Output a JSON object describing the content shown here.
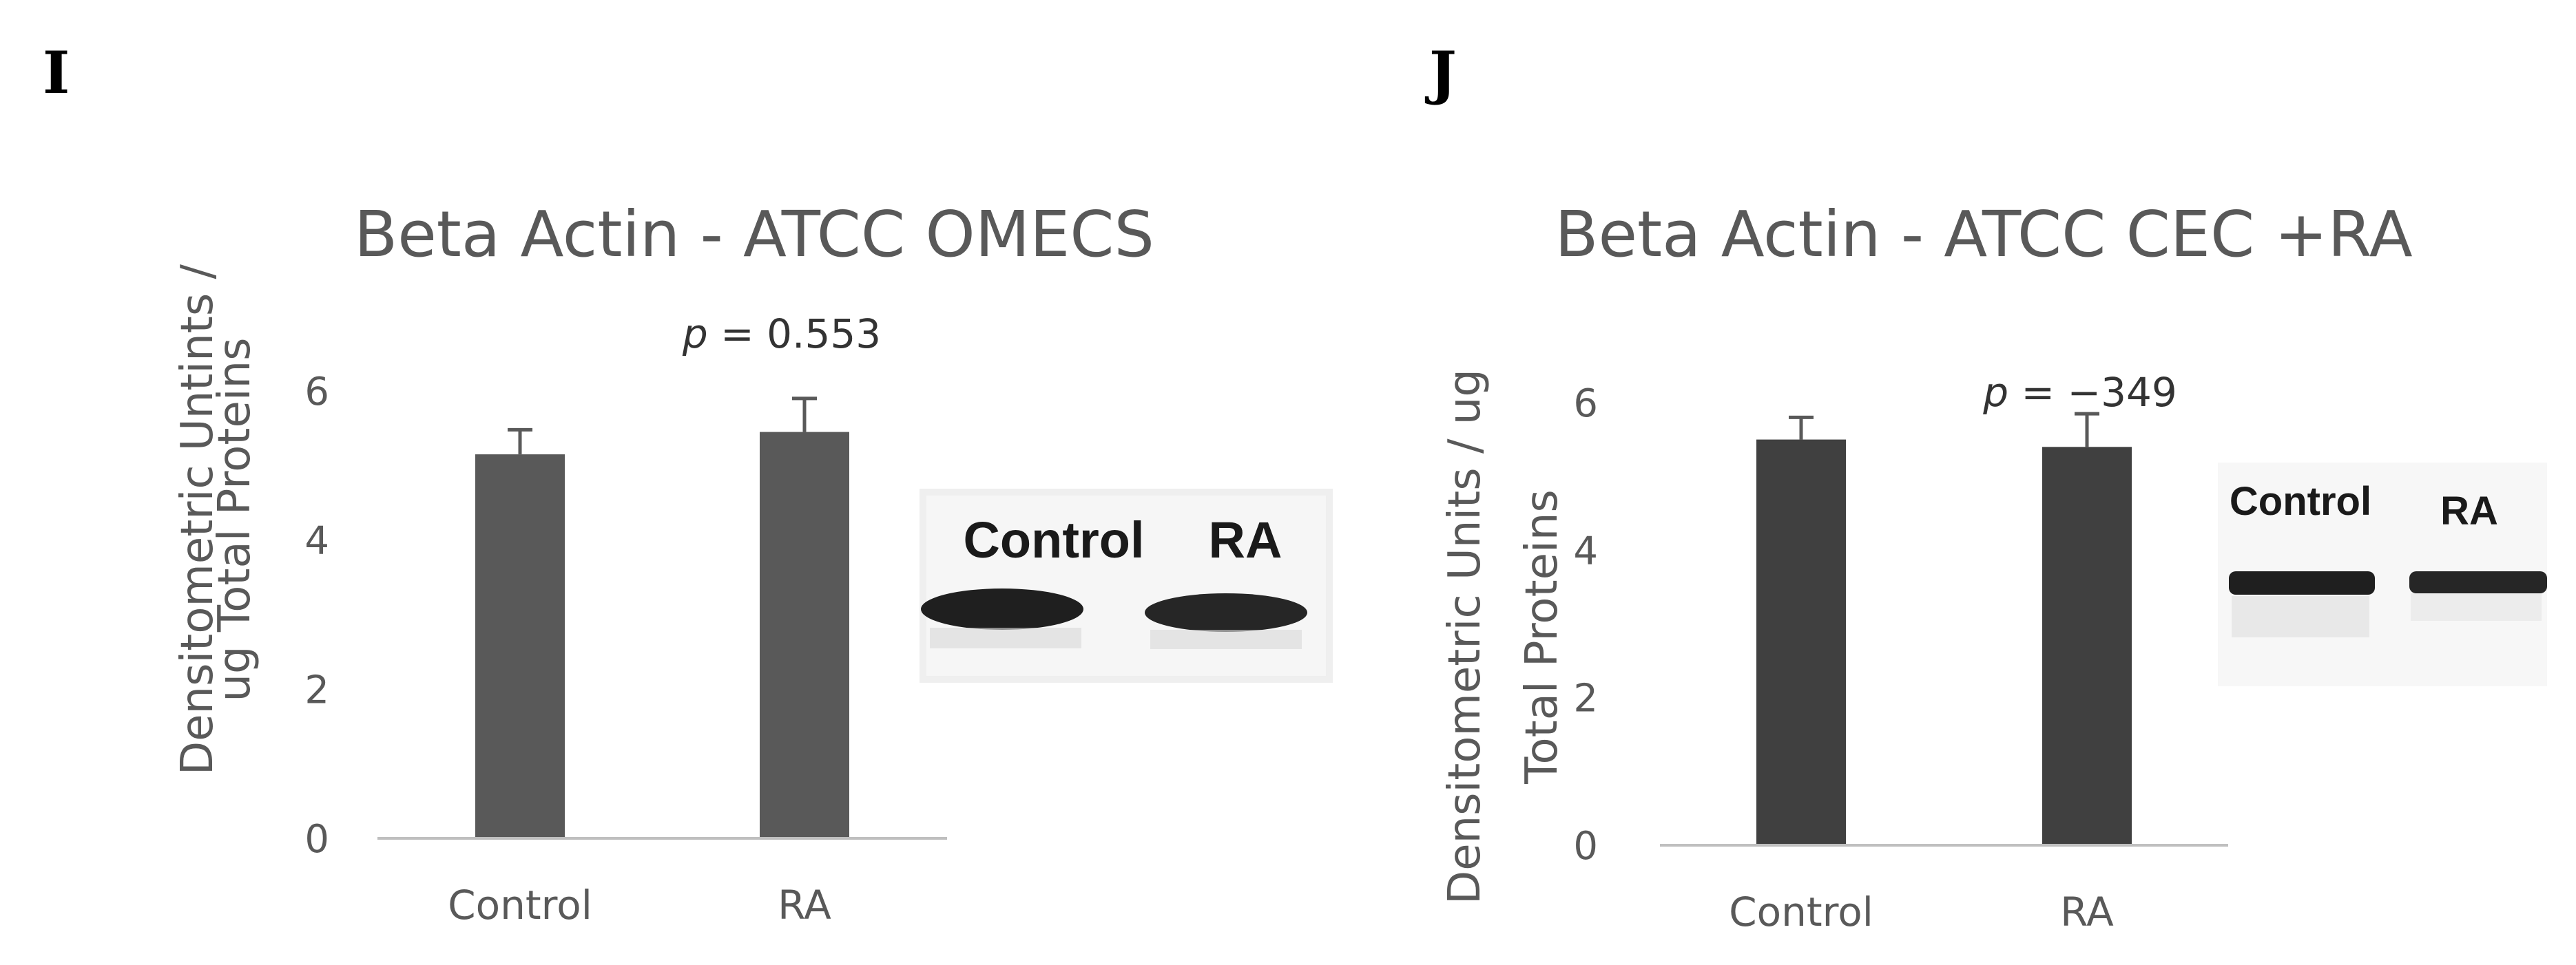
{
  "panels": [
    {
      "letter": "I"
    },
    {
      "letter": "J"
    }
  ],
  "chart_data": [
    {
      "type": "bar",
      "title": "Beta Actin - ATCC OMECS",
      "ylabel_lines": [
        "Densitometric Untints /",
        "ug Total Proteins"
      ],
      "xlabel": "",
      "categories": [
        "Control",
        "RA"
      ],
      "values": [
        5.15,
        5.45
      ],
      "error": [
        0.33,
        0.45
      ],
      "ylim": [
        0,
        6
      ],
      "yticks": [
        0,
        2,
        4,
        6
      ],
      "annotation_p": "p",
      "annotation_rest": " = 0.553",
      "bar_color": "#595959",
      "grid": false,
      "inset_blot_labels": [
        "Control",
        "RA"
      ]
    },
    {
      "type": "bar",
      "title": "Beta Actin - ATCC CEC +RA",
      "ylabel_lines": [
        "Densitometric Units / ug",
        "Total Proteins"
      ],
      "xlabel": "",
      "categories": [
        "Control",
        "RA"
      ],
      "values": [
        5.5,
        5.4
      ],
      "error": [
        0.3,
        0.45
      ],
      "ylim": [
        0,
        6
      ],
      "yticks": [
        0,
        2,
        4,
        6
      ],
      "annotation_p": "p",
      "annotation_rest": " = −349",
      "bar_color": "#404040",
      "grid": false,
      "inset_blot_labels": [
        "Control",
        "RA"
      ]
    }
  ]
}
